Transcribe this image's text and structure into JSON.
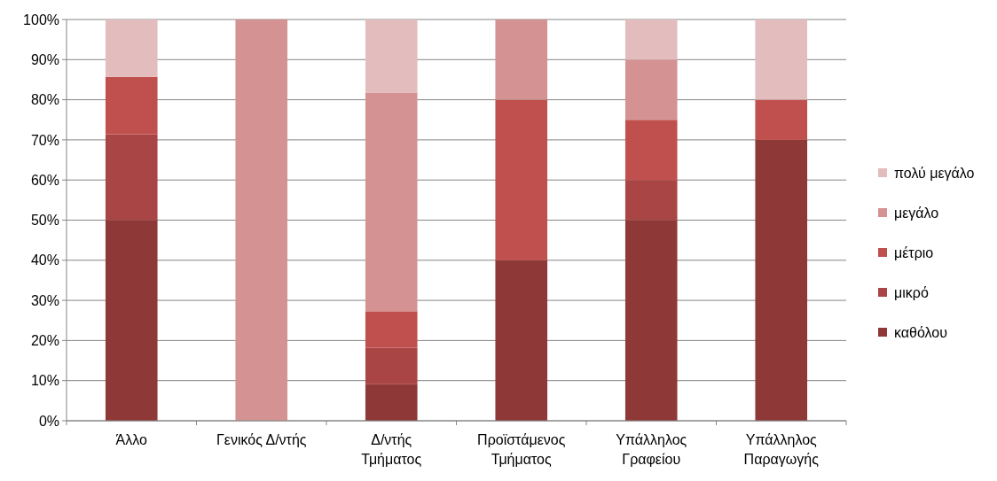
{
  "chart_data": {
    "type": "bar",
    "stacked": true,
    "categories": [
      "Άλλο",
      "Γενικός Δ/ντής",
      "Δ/ντής\nΤμήματος",
      "Προϊστάμενος\nΤμήματος",
      "Υπάλληλος\nΓραφείου",
      "Υπάλληλος\nΠαραγωγής"
    ],
    "series": [
      {
        "name": "καθόλου",
        "color": "#8e3837",
        "values": [
          50,
          0,
          9.1,
          40,
          50,
          70
        ]
      },
      {
        "name": "μικρό",
        "color": "#a94544",
        "values": [
          21.4,
          0,
          9.1,
          0,
          10,
          0
        ]
      },
      {
        "name": "μέτριο",
        "color": "#c0504d",
        "values": [
          14.3,
          0,
          9.1,
          40,
          15,
          10
        ]
      },
      {
        "name": "μεγάλο",
        "color": "#d49392",
        "values": [
          0,
          100,
          54.5,
          20,
          15,
          0
        ]
      },
      {
        "name": "πολύ μεγάλο",
        "color": "#e3bdbd",
        "values": [
          14.3,
          0,
          18.2,
          0,
          10,
          20
        ]
      }
    ],
    "ylim": [
      0,
      100
    ],
    "yticks": [
      {
        "value": 0,
        "label": "0%"
      },
      {
        "value": 10,
        "label": "10%"
      },
      {
        "value": 20,
        "label": "20%"
      },
      {
        "value": 30,
        "label": "30%"
      },
      {
        "value": 40,
        "label": "40%"
      },
      {
        "value": 50,
        "label": "50%"
      },
      {
        "value": 60,
        "label": "60%"
      },
      {
        "value": 70,
        "label": "70%"
      },
      {
        "value": 80,
        "label": "80%"
      },
      {
        "value": 90,
        "label": "90%"
      },
      {
        "value": 100,
        "label": "100%"
      }
    ],
    "grid": "y",
    "legend": "right"
  }
}
